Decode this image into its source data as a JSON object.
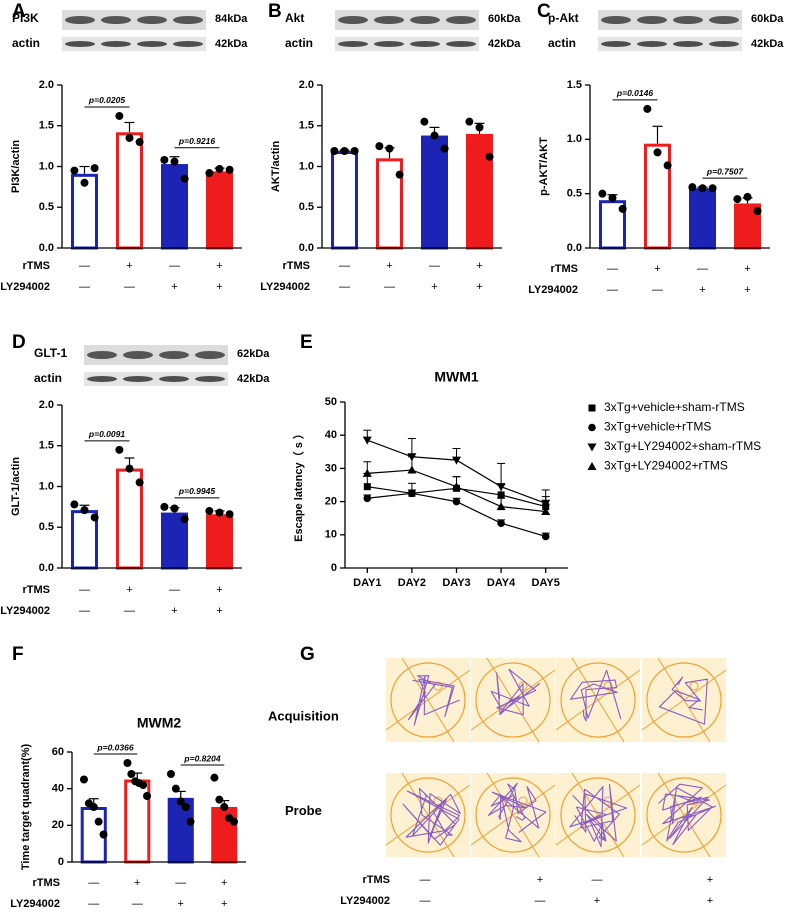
{
  "chart_data": [
    {
      "type": "bar",
      "letter": "A",
      "ylabel": "PI3K/actin",
      "blot": {
        "protein": "PI3K",
        "protein_kda": "84kDa",
        "control": "actin",
        "control_kda": "42kDa"
      },
      "values": [
        0.91,
        1.42,
        1.03,
        0.94
      ],
      "errors": [
        0.09,
        0.12,
        0.09,
        0.04
      ],
      "points": [
        [
          0.95,
          0.8,
          0.98
        ],
        [
          1.62,
          1.35,
          1.3
        ],
        [
          1.08,
          1.06,
          0.85
        ],
        [
          0.92,
          0.97,
          0.96
        ]
      ],
      "edge_colors": [
        "#1c24b4",
        "#ee1c1c",
        "#1c24b4",
        "#ee1c1c"
      ],
      "fill_colors": [
        "#ffffff",
        "#ffffff",
        "#1c24b4",
        "#ee1c1c"
      ],
      "ylim": [
        0,
        2
      ],
      "yticks": [
        {
          "value": 0,
          "label": "0.0"
        },
        {
          "value": 0.5,
          "label": "0.5"
        },
        {
          "value": 1,
          "label": "1.0"
        },
        {
          "value": 1.5,
          "label": "1.5"
        },
        {
          "value": 2,
          "label": "2.0"
        }
      ],
      "p_values": [
        "p=0.0205",
        "p=0.9216"
      ],
      "treatments": [
        {
          "name": "rTMS",
          "signs": [
            "—",
            "+",
            "—",
            "+"
          ]
        },
        {
          "name": "LY294002",
          "signs": [
            "—",
            "—",
            "+",
            "+"
          ]
        }
      ]
    },
    {
      "type": "bar",
      "letter": "B",
      "ylabel": "AKT/actin",
      "blot": {
        "protein": "Akt",
        "protein_kda": "60kDa",
        "control": "actin",
        "control_kda": "42kDa"
      },
      "values": [
        1.19,
        1.1,
        1.38,
        1.4
      ],
      "errors": [
        0.01,
        0.13,
        0.1,
        0.13
      ],
      "points": [
        [
          1.19,
          1.19,
          1.19
        ],
        [
          1.25,
          1.22,
          0.9
        ],
        [
          1.55,
          1.38,
          1.22
        ],
        [
          1.55,
          1.48,
          1.12
        ]
      ],
      "edge_colors": [
        "#1c24b4",
        "#ee1c1c",
        "#1c24b4",
        "#ee1c1c"
      ],
      "fill_colors": [
        "#ffffff",
        "#ffffff",
        "#1c24b4",
        "#ee1c1c"
      ],
      "ylim": [
        0,
        2
      ],
      "yticks": [
        {
          "value": 0,
          "label": "0.0"
        },
        {
          "value": 0.5,
          "label": "0.5"
        },
        {
          "value": 1,
          "label": "1.0"
        },
        {
          "value": 1.5,
          "label": "1.5"
        },
        {
          "value": 2,
          "label": "2.0"
        }
      ],
      "p_values": [],
      "treatments": [
        {
          "name": "rTMS",
          "signs": [
            "—",
            "+",
            "—",
            "+"
          ]
        },
        {
          "name": "LY294002",
          "signs": [
            "—",
            "—",
            "+",
            "+"
          ]
        }
      ]
    },
    {
      "type": "bar",
      "letter": "C",
      "ylabel": "p-AKT/AKT",
      "blot": {
        "protein": "p-Akt",
        "protein_kda": "60kDa",
        "control": "actin",
        "control_kda": "42kDa"
      },
      "values": [
        0.44,
        0.96,
        0.55,
        0.41
      ],
      "errors": [
        0.05,
        0.16,
        0.01,
        0.05
      ],
      "points": [
        [
          0.5,
          0.46,
          0.36
        ],
        [
          1.28,
          0.88,
          0.76
        ],
        [
          0.56,
          0.55,
          0.55
        ],
        [
          0.45,
          0.47,
          0.34
        ]
      ],
      "edge_colors": [
        "#1c24b4",
        "#ee1c1c",
        "#1c24b4",
        "#ee1c1c"
      ],
      "fill_colors": [
        "#ffffff",
        "#ffffff",
        "#1c24b4",
        "#ee1c1c"
      ],
      "ylim": [
        0,
        1.5
      ],
      "yticks": [
        {
          "value": 0,
          "label": "0.0"
        },
        {
          "value": 0.5,
          "label": "0.5"
        },
        {
          "value": 1,
          "label": "1.0"
        },
        {
          "value": 1.5,
          "label": "1.5"
        }
      ],
      "p_values": [
        "p=0.0146",
        "p=0.7507"
      ],
      "treatments": [
        {
          "name": "rTMS",
          "signs": [
            "—",
            "+",
            "—",
            "+"
          ]
        },
        {
          "name": "LY294002",
          "signs": [
            "—",
            "—",
            "+",
            "+"
          ]
        }
      ]
    },
    {
      "type": "bar",
      "letter": "D",
      "ylabel": "GLT-1/actin",
      "blot": {
        "protein": "GLT-1",
        "protein_kda": "62kDa",
        "control": "actin",
        "control_kda": "42kDa"
      },
      "values": [
        0.71,
        1.22,
        0.68,
        0.66
      ],
      "errors": [
        0.06,
        0.13,
        0.06,
        0.04
      ],
      "points": [
        [
          0.78,
          0.71,
          0.62
        ],
        [
          1.45,
          1.22,
          1.05
        ],
        [
          0.75,
          0.73,
          0.6
        ],
        [
          0.7,
          0.68,
          0.66
        ]
      ],
      "edge_colors": [
        "#1c24b4",
        "#ee1c1c",
        "#1c24b4",
        "#ee1c1c"
      ],
      "fill_colors": [
        "#ffffff",
        "#ffffff",
        "#1c24b4",
        "#ee1c1c"
      ],
      "ylim": [
        0,
        2
      ],
      "yticks": [
        {
          "value": 0,
          "label": "0.0"
        },
        {
          "value": 0.5,
          "label": "0.5"
        },
        {
          "value": 1,
          "label": "1.0"
        },
        {
          "value": 1.5,
          "label": "1.5"
        },
        {
          "value": 2,
          "label": "2.0"
        }
      ],
      "p_values": [
        "p=0.0091",
        "p=0.9945"
      ],
      "treatments": [
        {
          "name": "rTMS",
          "signs": [
            "—",
            "+",
            "—",
            "+"
          ]
        },
        {
          "name": "LY294002",
          "signs": [
            "—",
            "—",
            "+",
            "+"
          ]
        }
      ]
    },
    {
      "type": "line",
      "letter": "E",
      "title": "MWM1",
      "ylabel": "Escape latency（ s ）",
      "categories": [
        "DAY1",
        "DAY2",
        "DAY3",
        "DAY4",
        "DAY5"
      ],
      "series": [
        {
          "name": "3xTg+vehicle+sham-rTMS",
          "marker": "square",
          "color": "#000000",
          "values": [
            24.5,
            22.5,
            24,
            22,
            18.5
          ],
          "errors": [
            4,
            3,
            3.5,
            3,
            3
          ]
        },
        {
          "name": "3xTg+vehicle+rTMS",
          "marker": "circle",
          "color": "#000000",
          "values": [
            21,
            22.5,
            20,
            13.5,
            9.5
          ],
          "errors": [
            1,
            1,
            1,
            1,
            1
          ]
        },
        {
          "name": "3xTg+LY294002+sham-rTMS",
          "marker": "triangle-down",
          "color": "#000000",
          "values": [
            38.5,
            33.5,
            32.5,
            24.5,
            19.5
          ],
          "errors": [
            3,
            5.5,
            3.5,
            7,
            4
          ]
        },
        {
          "name": "3xTg+LY294002+rTMS",
          "marker": "triangle",
          "color": "#000000",
          "values": [
            28.5,
            29.5,
            24.5,
            18.5,
            17
          ],
          "errors": [
            3.5,
            4,
            3,
            2.5,
            2
          ]
        }
      ],
      "ylim": [
        0,
        50
      ],
      "yticks": [
        0,
        10,
        20,
        30,
        40,
        50
      ]
    },
    {
      "type": "bar",
      "letter": "F",
      "title": "MWM2",
      "ylabel": "Time target quadrant(%)",
      "values": [
        30,
        45,
        35,
        30
      ],
      "errors": [
        4.5,
        3.5,
        3.5,
        3.5
      ],
      "points": [
        [
          45,
          32,
          30,
          22,
          15
        ],
        [
          54,
          48,
          44,
          43,
          42,
          36
        ],
        [
          48,
          40,
          33,
          30,
          22
        ],
        [
          46,
          34,
          30,
          24,
          22
        ]
      ],
      "edge_colors": [
        "#1c24b4",
        "#ee1c1c",
        "#1c24b4",
        "#ee1c1c"
      ],
      "fill_colors": [
        "#ffffff",
        "#ffffff",
        "#1c24b4",
        "#ee1c1c"
      ],
      "ylim": [
        0,
        60
      ],
      "yticks": [
        0,
        20,
        40,
        60
      ],
      "p_values": [
        "p=0.0366",
        "p=0.8204"
      ],
      "treatments": [
        {
          "name": "rTMS",
          "signs": [
            "—",
            "+",
            "—",
            "+"
          ]
        },
        {
          "name": "LY294002",
          "signs": [
            "—",
            "—",
            "+",
            "+"
          ]
        }
      ]
    }
  ],
  "panel_g": {
    "letter": "G",
    "rows": [
      "Acquisition",
      "Probe"
    ],
    "treatments": [
      {
        "name": "rTMS",
        "signs": [
          "—",
          "+",
          "—",
          "+"
        ]
      },
      {
        "name": "LY294002",
        "signs": [
          "—",
          "—",
          "+",
          "+"
        ]
      }
    ]
  }
}
